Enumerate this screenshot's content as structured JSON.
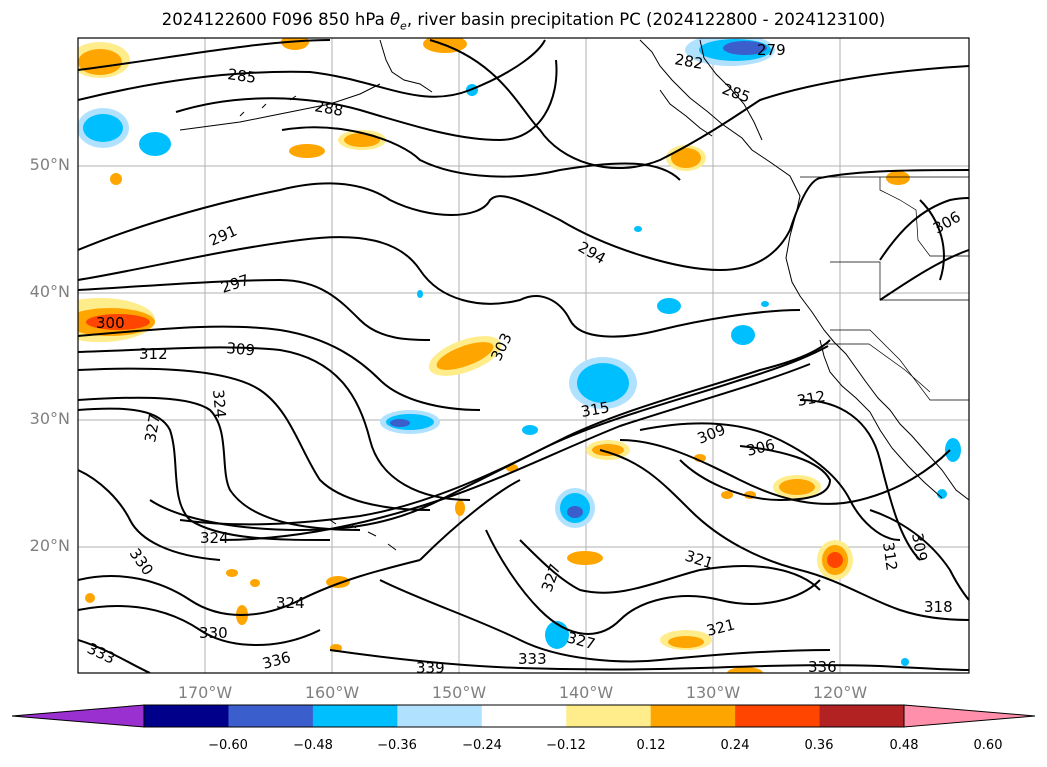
{
  "title": {
    "prefix": "2024122600 F096 850 hPa ",
    "theta": "θ",
    "sub": "e",
    "suffix": ", river basin precipitation PC (2024122800 - 2024123100)"
  },
  "map": {
    "lat_labels": [
      "50°N",
      "40°N",
      "30°N",
      "20°N"
    ],
    "lon_labels": [
      "170°W",
      "160°W",
      "150°W",
      "140°W",
      "130°W",
      "120°W"
    ],
    "contour_labels": [
      "279",
      "282",
      "285",
      "288",
      "285",
      "291",
      "294",
      "297",
      "300",
      "303",
      "306",
      "306",
      "309",
      "309",
      "309",
      "312",
      "312",
      "312",
      "315",
      "318",
      "321",
      "321",
      "324",
      "324",
      "324",
      "327",
      "327",
      "327",
      "330",
      "330",
      "333",
      "333",
      "336",
      "336",
      "339"
    ]
  },
  "colorbar": {
    "colors": [
      "#9b30d0",
      "#00008b",
      "#3a5fcd",
      "#00bfff",
      "#b0e2ff",
      "#ffffff",
      "#ffec8b",
      "#ffa500",
      "#ff4500",
      "#b22222",
      "#ff8fab"
    ],
    "ticks": [
      "−0.60",
      "−0.48",
      "−0.36",
      "−0.24",
      "−0.12",
      "0.12",
      "0.24",
      "0.36",
      "0.48",
      "0.60"
    ]
  }
}
